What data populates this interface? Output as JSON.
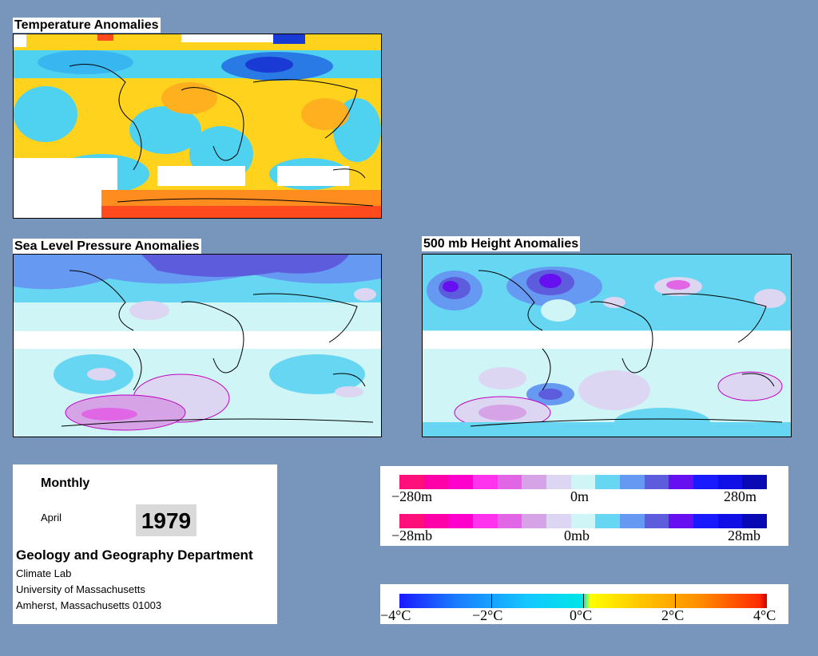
{
  "panels": {
    "temperature": {
      "title": "Temperature Anomalies"
    },
    "slp": {
      "title": "Sea Level Pressure Anomalies"
    },
    "height500": {
      "title": "500 mb Height Anomalies"
    }
  },
  "info": {
    "frequency": "Monthly",
    "month": "April",
    "year": "1979",
    "department": "Geology and Geography Department",
    "lab": "Climate Lab",
    "university": "University of Massachusetts",
    "address": "Amherst, Massachusetts 01003"
  },
  "legend_height": {
    "min_label": "−280m",
    "mid_label": "0m",
    "max_label": "280m",
    "colors": [
      "#ff0f7a",
      "#ff00a8",
      "#ff00cc",
      "#ff33ee",
      "#e066e6",
      "#d6a3e6",
      "#dcd6f2",
      "#cff5f7",
      "#66d6f2",
      "#6699f2",
      "#5c5cdc",
      "#6610f2",
      "#1a1aff",
      "#1010e6",
      "#0a0ab4"
    ]
  },
  "legend_pressure": {
    "min_label": "−28mb",
    "mid_label": "0mb",
    "max_label": "28mb",
    "colors": [
      "#ff0f7a",
      "#ff00a8",
      "#ff00cc",
      "#ff33ee",
      "#e066e6",
      "#d6a3e6",
      "#dcd6f2",
      "#cff5f7",
      "#66d6f2",
      "#6699f2",
      "#5c5cdc",
      "#6610f2",
      "#1a1aff",
      "#1010e6",
      "#0a0ab4"
    ]
  },
  "legend_temperature": {
    "labels": [
      "−4°C",
      "−2°C",
      "0°C",
      "2°C",
      "4°C"
    ]
  }
}
